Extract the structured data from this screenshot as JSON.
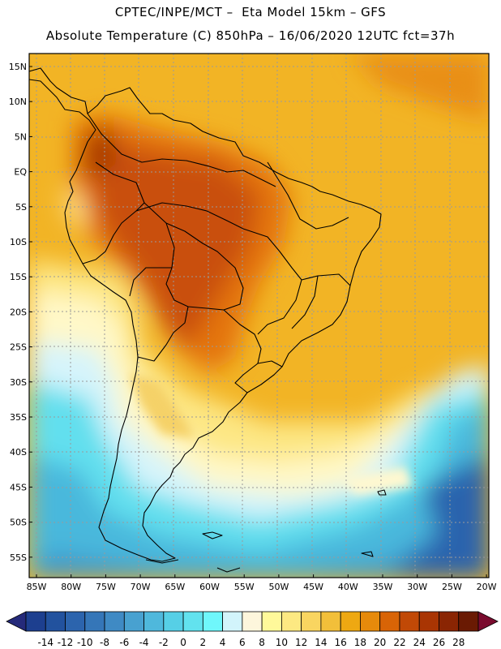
{
  "header": {
    "line1": "CPTEC/INPE/MCT –  Eta Model 15km – GFS",
    "line2": "Absolute Temperature (C) 850hPa – 16/06/2020 12UTC fct=37h"
  },
  "axes": {
    "lat_labels": [
      "15N",
      "10N",
      "5N",
      "EQ",
      "5S",
      "10S",
      "15S",
      "20S",
      "25S",
      "30S",
      "35S",
      "40S",
      "45S",
      "50S",
      "55S"
    ],
    "lon_labels": [
      "85W",
      "80W",
      "75W",
      "70W",
      "65W",
      "60W",
      "55W",
      "50W",
      "45W",
      "40W",
      "35W",
      "30W",
      "25W",
      "20W"
    ]
  },
  "colorbar": {
    "labels": [
      "-14",
      "-12",
      "-10",
      "-8",
      "-6",
      "-4",
      "-2",
      "0",
      "2",
      "4",
      "6",
      "8",
      "10",
      "12",
      "14",
      "16",
      "18",
      "20",
      "22",
      "24",
      "26",
      "28"
    ],
    "colors": [
      "#1d3f8f",
      "#22529e",
      "#2c64ad",
      "#3576b8",
      "#3f8ac4",
      "#48a1d0",
      "#4fb8dc",
      "#56cfe6",
      "#62e2ee",
      "#6ff7fb",
      "#d2f4fb",
      "#fdf6dc",
      "#fff99a",
      "#fde982",
      "#f9d560",
      "#f2bf3a",
      "#eea812",
      "#e68a0b",
      "#d86406",
      "#c14906",
      "#a93503",
      "#8a2503",
      "#6a1a03"
    ],
    "under_color": "#252a7a",
    "over_color": "#7a0b2e"
  }
}
